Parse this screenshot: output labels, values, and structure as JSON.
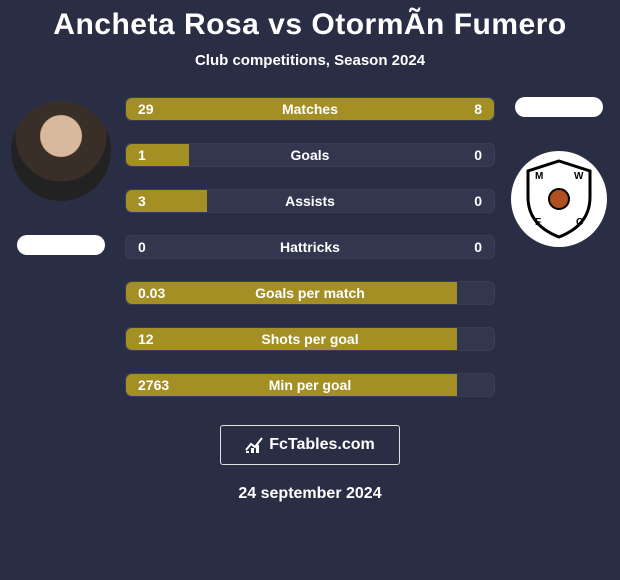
{
  "title": "Ancheta Rosa vs OtormÃ­n Fumero",
  "subtitle": "Club competitions, Season 2024",
  "colors": {
    "left": "#a38f24",
    "right": "#a38f24",
    "neutral": "#32374f",
    "text": "#ffffff"
  },
  "player_left": {
    "name": "Ancheta Rosa"
  },
  "player_right": {
    "name": "OtormÃ­n Fumero",
    "club_abbr": "MWFC"
  },
  "stats": [
    {
      "label": "Matches",
      "left_val": "29",
      "right_val": "8",
      "left_pct": 70,
      "right_pct": 30,
      "left_color": "#a38f24",
      "right_color": "#a38f24"
    },
    {
      "label": "Goals",
      "left_val": "1",
      "right_val": "0",
      "left_pct": 17,
      "right_pct": 0,
      "left_color": "#a38f24",
      "right_color": "#32374f"
    },
    {
      "label": "Assists",
      "left_val": "3",
      "right_val": "0",
      "left_pct": 22,
      "right_pct": 0,
      "left_color": "#a38f24",
      "right_color": "#32374f"
    },
    {
      "label": "Hattricks",
      "left_val": "0",
      "right_val": "0",
      "left_pct": 0,
      "right_pct": 0,
      "left_color": "#32374f",
      "right_color": "#32374f"
    },
    {
      "label": "Goals per match",
      "left_val": "0.03",
      "right_val": "",
      "left_pct": 90,
      "right_pct": 0,
      "left_color": "#a38f24",
      "right_color": "#a38f24"
    },
    {
      "label": "Shots per goal",
      "left_val": "12",
      "right_val": "",
      "left_pct": 90,
      "right_pct": 0,
      "left_color": "#a38f24",
      "right_color": "#a38f24"
    },
    {
      "label": "Min per goal",
      "left_val": "2763",
      "right_val": "",
      "left_pct": 90,
      "right_pct": 0,
      "left_color": "#a38f24",
      "right_color": "#a38f24"
    }
  ],
  "footer": {
    "brand": "FcTables.com",
    "date": "24 september 2024"
  }
}
